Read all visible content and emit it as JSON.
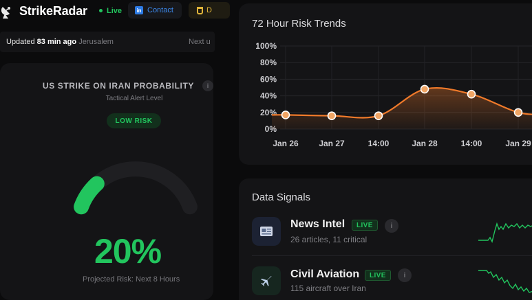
{
  "header": {
    "brand": "StrikeRadar",
    "live_label": "Live",
    "contact_label": "Contact",
    "donate_label": "D",
    "icons": [
      "satellite-dish-icon",
      "linkedin-icon",
      "coffee-cup-icon"
    ]
  },
  "update_bar": {
    "prefix": "Updated",
    "time": "83 min ago",
    "location": "Jerusalem",
    "next": "Next u"
  },
  "probability": {
    "title": "US STRIKE ON IRAN PROBABILITY",
    "info": "i",
    "subtitle": "Tactical Alert Level",
    "badge": "LOW RISK",
    "value": "20%",
    "percent": 20,
    "footer": "Projected Risk: Next 8 Hours",
    "accent_color": "#22c55e"
  },
  "trends": {
    "title": "72 Hour Risk Trends",
    "chart_data": {
      "type": "area",
      "x": [
        "Jan 26",
        "Jan 27",
        "14:00",
        "Jan 28",
        "14:00",
        "Jan 29"
      ],
      "values": [
        17,
        16,
        16,
        48,
        42,
        20
      ],
      "yticks": [
        "0%",
        "20%",
        "40%",
        "60%",
        "80%",
        "100%"
      ],
      "ylim": [
        0,
        100
      ],
      "grid": true,
      "line_color": "#f07a2a"
    }
  },
  "signals": {
    "title": "Data Signals",
    "items": [
      {
        "name": "News Intel",
        "live": "LIVE",
        "info": "i",
        "sub": "26 articles, 11 critical",
        "icon": "newspaper-icon",
        "icon_bg": "#1c2233"
      },
      {
        "name": "Civil Aviation",
        "live": "LIVE",
        "info": "i",
        "sub": "115 aircraft over Iran",
        "icon": "airplane-icon",
        "icon_bg": "#16261f"
      }
    ]
  }
}
